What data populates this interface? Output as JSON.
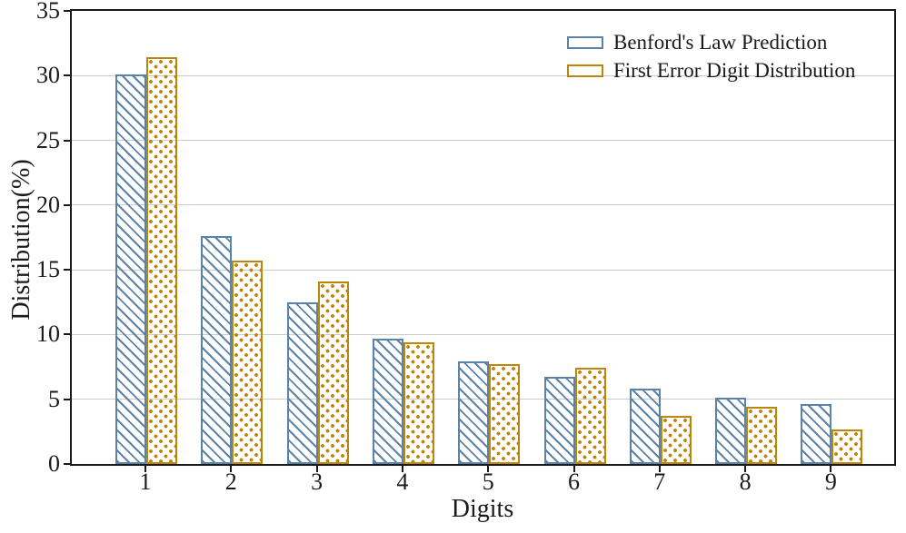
{
  "chart_data": {
    "type": "bar",
    "title": "",
    "xlabel": "Digits",
    "ylabel": "Distribution(%)",
    "categories": [
      "1",
      "2",
      "3",
      "4",
      "5",
      "6",
      "7",
      "8",
      "9"
    ],
    "series": [
      {
        "name": "Benford's Law Prediction",
        "values": [
          30.1,
          17.6,
          12.5,
          9.7,
          7.9,
          6.7,
          5.8,
          5.1,
          4.6
        ],
        "color": "#5b82a8",
        "hatch": "diagonal"
      },
      {
        "name": "First Error Digit Distribution",
        "values": [
          31.4,
          15.7,
          14.1,
          9.4,
          7.7,
          7.4,
          3.7,
          4.4,
          2.7
        ],
        "color": "#bd860b",
        "hatch": "dots"
      }
    ],
    "ylim": [
      0,
      35
    ],
    "yticks": [
      0,
      5,
      10,
      15,
      20,
      25,
      30,
      35
    ],
    "grid": "horizontal",
    "grid_color": "#cccccc",
    "legend_position": "upper right"
  }
}
